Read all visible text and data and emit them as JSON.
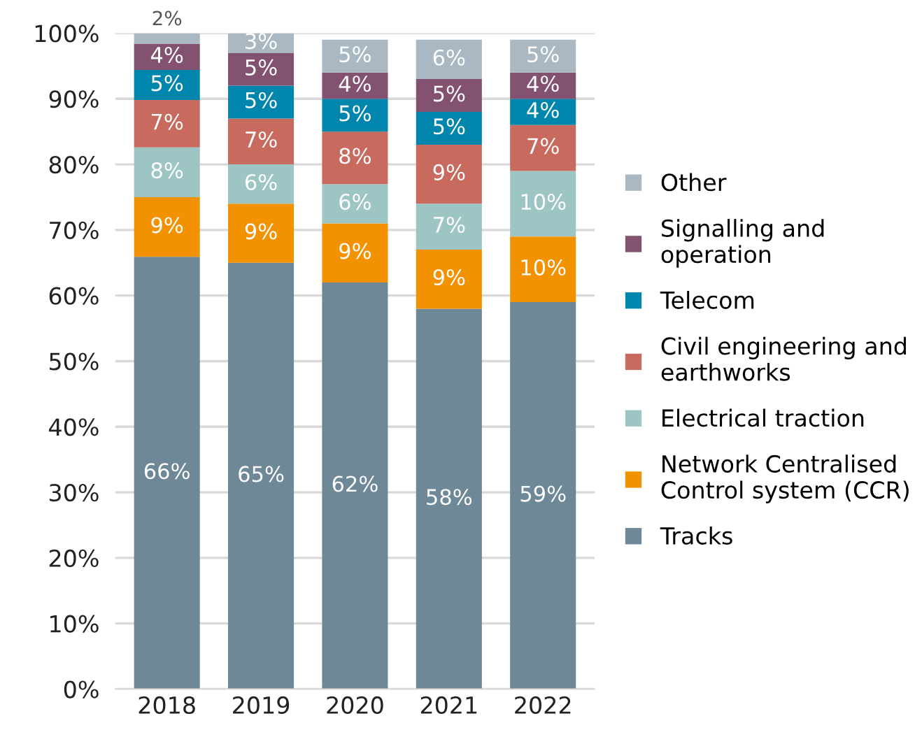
{
  "chart_data": {
    "type": "bar",
    "stacked": true,
    "categories": [
      "2018",
      "2019",
      "2020",
      "2021",
      "2022"
    ],
    "series": [
      {
        "name": "Tracks",
        "color": "#6e8898",
        "values": [
          65.9,
          65,
          62,
          58,
          59
        ],
        "value_labels": [
          "66%",
          "65%",
          "62%",
          "58%",
          "59%"
        ]
      },
      {
        "name": "Network Centralised\nControl system (CCR)",
        "color": "#f39200",
        "values": [
          9.1,
          9,
          9,
          9,
          10
        ],
        "value_labels": [
          "9%",
          "9%",
          "9%",
          "9%",
          "10%"
        ]
      },
      {
        "name": "Electrical traction",
        "color": "#9dc5c4",
        "values": [
          7.6,
          6,
          6,
          7,
          10
        ],
        "value_labels": [
          "8%",
          "6%",
          "6%",
          "7%",
          "10%"
        ]
      },
      {
        "name": "Civil engineering and\nearthworks",
        "color": "#c96a5e",
        "values": [
          7.2,
          7,
          8,
          9,
          7
        ],
        "value_labels": [
          "7%",
          "7%",
          "8%",
          "9%",
          "7%"
        ]
      },
      {
        "name": "Telecom",
        "color": "#0086ad",
        "values": [
          4.6,
          5,
          5,
          5,
          4
        ],
        "value_labels": [
          "5%",
          "5%",
          "5%",
          "5%",
          "4%"
        ]
      },
      {
        "name": "Signalling and\noperation",
        "color": "#835270",
        "values": [
          4.0,
          5,
          4,
          5,
          4
        ],
        "value_labels": [
          "4%",
          "5%",
          "4%",
          "5%",
          "4%"
        ]
      },
      {
        "name": "Other",
        "color": "#a9b8c2",
        "values": [
          1.6,
          3,
          5,
          6,
          5
        ],
        "value_labels": [
          "2%",
          "3%",
          "5%",
          "6%",
          "5%"
        ]
      }
    ],
    "ylim": [
      0,
      100
    ],
    "yticks": [
      {
        "value": 0,
        "label": "0%"
      },
      {
        "value": 10,
        "label": "10%"
      },
      {
        "value": 20,
        "label": "20%"
      },
      {
        "value": 30,
        "label": "30%"
      },
      {
        "value": 40,
        "label": "40%"
      },
      {
        "value": 50,
        "label": "50%"
      },
      {
        "value": 60,
        "label": "60%"
      },
      {
        "value": 70,
        "label": "70%"
      },
      {
        "value": 80,
        "label": "80%"
      },
      {
        "value": 90,
        "label": "90%"
      },
      {
        "value": 100,
        "label": "100%"
      }
    ],
    "grid": "y",
    "legend": "right"
  }
}
